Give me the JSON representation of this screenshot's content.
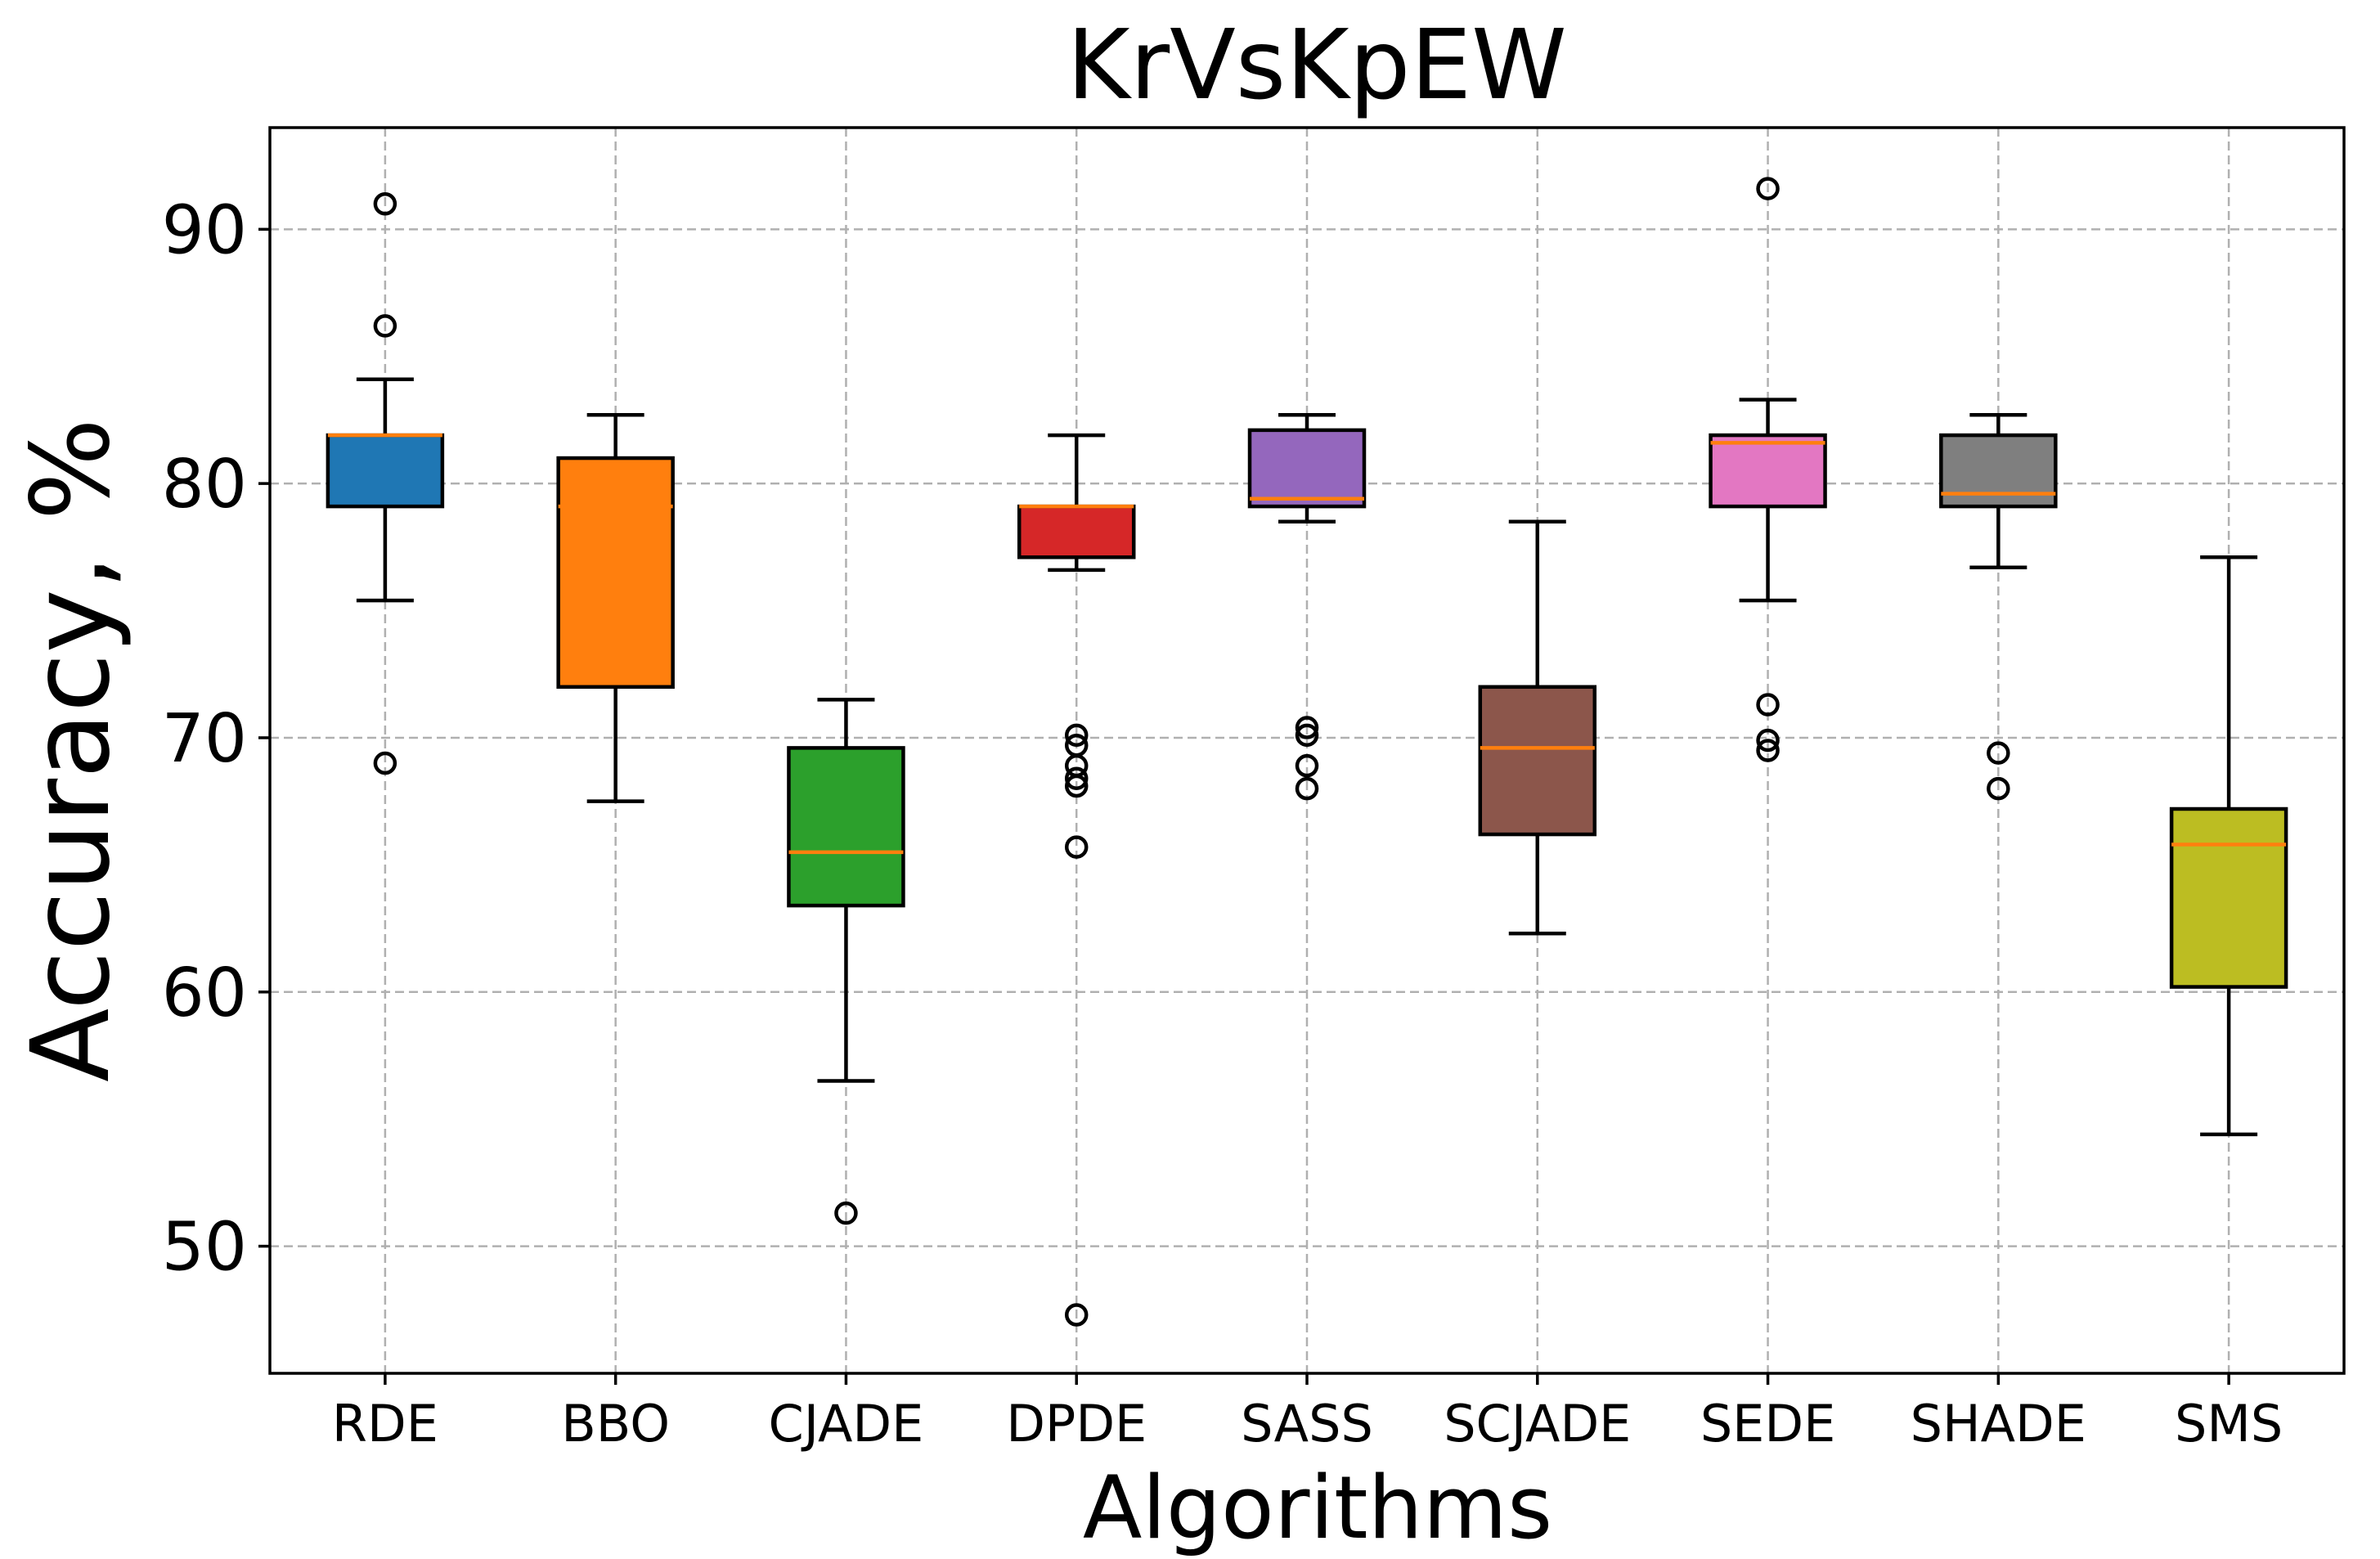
{
  "chart_data": {
    "type": "box",
    "title": "KrVsKpEW",
    "xlabel": "Algorithms",
    "ylabel": "Accuracy, %",
    "ylim": [
      45,
      94
    ],
    "yticks": [
      50,
      60,
      70,
      80,
      90
    ],
    "grid": true,
    "median_color": "#ff7f0e",
    "categories": [
      "RDE",
      "BBO",
      "CJADE",
      "DPDE",
      "SASS",
      "SCJADE",
      "SEDE",
      "SHADE",
      "SMS"
    ],
    "series": [
      {
        "name": "RDE",
        "color": "#1f77b4",
        "whisker_low": 75.4,
        "q1": 79.1,
        "median": 81.9,
        "q3": 81.9,
        "whisker_high": 84.1,
        "outliers": [
          91.0,
          86.2,
          69.0
        ]
      },
      {
        "name": "BBO",
        "color": "#ff7f0e",
        "whisker_low": 67.5,
        "q1": 72.0,
        "median": 79.1,
        "q3": 81.0,
        "whisker_high": 82.7,
        "outliers": []
      },
      {
        "name": "CJADE",
        "color": "#2ca02c",
        "whisker_low": 56.5,
        "q1": 63.4,
        "median": 65.5,
        "q3": 69.6,
        "whisker_high": 71.5,
        "outliers": [
          51.3
        ]
      },
      {
        "name": "DPDE",
        "color": "#d62728",
        "whisker_low": 76.6,
        "q1": 77.1,
        "median": 79.1,
        "q3": 79.1,
        "whisker_high": 81.9,
        "outliers": [
          70.1,
          69.7,
          68.9,
          68.4,
          68.1,
          65.7,
          47.3
        ]
      },
      {
        "name": "SASS",
        "color": "#9467bd",
        "whisker_low": 78.5,
        "q1": 79.1,
        "median": 79.4,
        "q3": 82.1,
        "whisker_high": 82.7,
        "outliers": [
          70.4,
          70.1,
          68.9,
          68.0
        ]
      },
      {
        "name": "SCJADE",
        "color": "#8c564b",
        "whisker_low": 62.3,
        "q1": 66.2,
        "median": 69.6,
        "q3": 72.0,
        "whisker_high": 78.5,
        "outliers": []
      },
      {
        "name": "SEDE",
        "color": "#e377c2",
        "whisker_low": 75.4,
        "q1": 79.1,
        "median": 81.6,
        "q3": 81.9,
        "whisker_high": 83.3,
        "outliers": [
          91.6,
          71.3,
          69.9,
          69.5
        ]
      },
      {
        "name": "SHADE",
        "color": "#7f7f7f",
        "whisker_low": 76.7,
        "q1": 79.1,
        "median": 79.6,
        "q3": 81.9,
        "whisker_high": 82.7,
        "outliers": [
          69.4,
          68.0
        ]
      },
      {
        "name": "SMS",
        "color": "#bcbd22",
        "whisker_low": 54.4,
        "q1": 60.2,
        "median": 65.8,
        "q3": 67.2,
        "whisker_high": 77.1,
        "outliers": []
      }
    ]
  }
}
